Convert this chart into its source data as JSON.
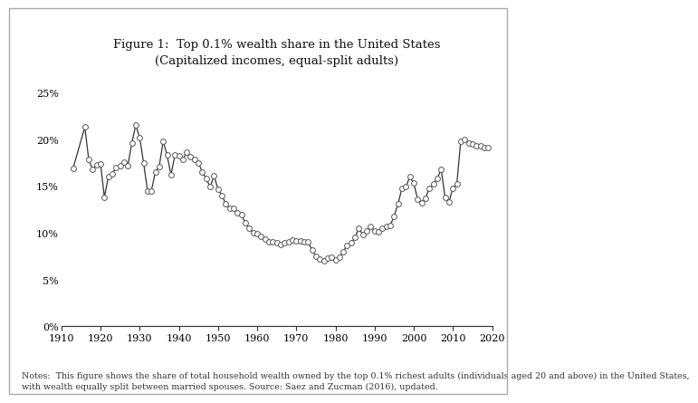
{
  "title_line1": "Figure 1:  Top 0.1% wealth share in the United States",
  "title_line2": "(Capitalized incomes, equal-split adults)",
  "note": "Notes:  This figure shows the share of total household wealth owned by the top 0.1% richest adults (individuals aged 20 and above) in the United States,\nwith wealth equally split between married spouses. Source: Saez and Zucman (2016), updated.",
  "years": [
    1913,
    1916,
    1917,
    1918,
    1919,
    1920,
    1921,
    1922,
    1923,
    1924,
    1925,
    1926,
    1927,
    1928,
    1929,
    1930,
    1931,
    1932,
    1933,
    1934,
    1935,
    1936,
    1937,
    1938,
    1939,
    1940,
    1941,
    1942,
    1943,
    1944,
    1945,
    1946,
    1947,
    1948,
    1949,
    1950,
    1951,
    1952,
    1953,
    1954,
    1955,
    1956,
    1957,
    1958,
    1959,
    1960,
    1961,
    1962,
    1963,
    1964,
    1965,
    1966,
    1967,
    1968,
    1969,
    1970,
    1971,
    1972,
    1973,
    1974,
    1975,
    1976,
    1977,
    1978,
    1979,
    1980,
    1981,
    1982,
    1983,
    1984,
    1985,
    1986,
    1987,
    1988,
    1989,
    1990,
    1991,
    1992,
    1993,
    1994,
    1995,
    1996,
    1997,
    1998,
    1999,
    2000,
    2001,
    2002,
    2003,
    2004,
    2005,
    2006,
    2007,
    2008,
    2009,
    2010,
    2011,
    2012,
    2013,
    2014,
    2015,
    2016,
    2017,
    2018,
    2019
  ],
  "values": [
    0.169,
    0.213,
    0.178,
    0.168,
    0.173,
    0.174,
    0.138,
    0.16,
    0.163,
    0.17,
    0.172,
    0.176,
    0.172,
    0.196,
    0.215,
    0.202,
    0.175,
    0.145,
    0.145,
    0.165,
    0.171,
    0.198,
    0.183,
    0.162,
    0.183,
    0.182,
    0.178,
    0.186,
    0.181,
    0.178,
    0.175,
    0.165,
    0.158,
    0.149,
    0.161,
    0.147,
    0.14,
    0.131,
    0.126,
    0.126,
    0.121,
    0.119,
    0.111,
    0.105,
    0.1,
    0.099,
    0.096,
    0.093,
    0.09,
    0.09,
    0.089,
    0.088,
    0.089,
    0.09,
    0.092,
    0.091,
    0.091,
    0.09,
    0.09,
    0.082,
    0.075,
    0.072,
    0.07,
    0.073,
    0.074,
    0.071,
    0.074,
    0.08,
    0.087,
    0.089,
    0.095,
    0.105,
    0.098,
    0.102,
    0.107,
    0.102,
    0.101,
    0.105,
    0.107,
    0.108,
    0.118,
    0.131,
    0.148,
    0.149,
    0.16,
    0.153,
    0.136,
    0.132,
    0.137,
    0.148,
    0.152,
    0.158,
    0.168,
    0.138,
    0.133,
    0.148,
    0.152,
    0.198,
    0.2,
    0.196,
    0.195,
    0.193,
    0.193,
    0.191,
    0.191
  ],
  "xlim": [
    1910,
    2020
  ],
  "xticks": [
    1910,
    1920,
    1930,
    1940,
    1950,
    1960,
    1970,
    1980,
    1990,
    2000,
    2010,
    2020
  ],
  "ylim": [
    0.0,
    0.27
  ],
  "yticks": [
    0.0,
    0.05,
    0.1,
    0.15,
    0.2,
    0.25
  ],
  "line_color": "#333333",
  "marker_facecolor": "white",
  "marker_edgecolor": "#555555",
  "bg_color": "#ffffff",
  "title_fontsize": 9.5,
  "note_fontsize": 6.8,
  "tick_fontsize": 8
}
